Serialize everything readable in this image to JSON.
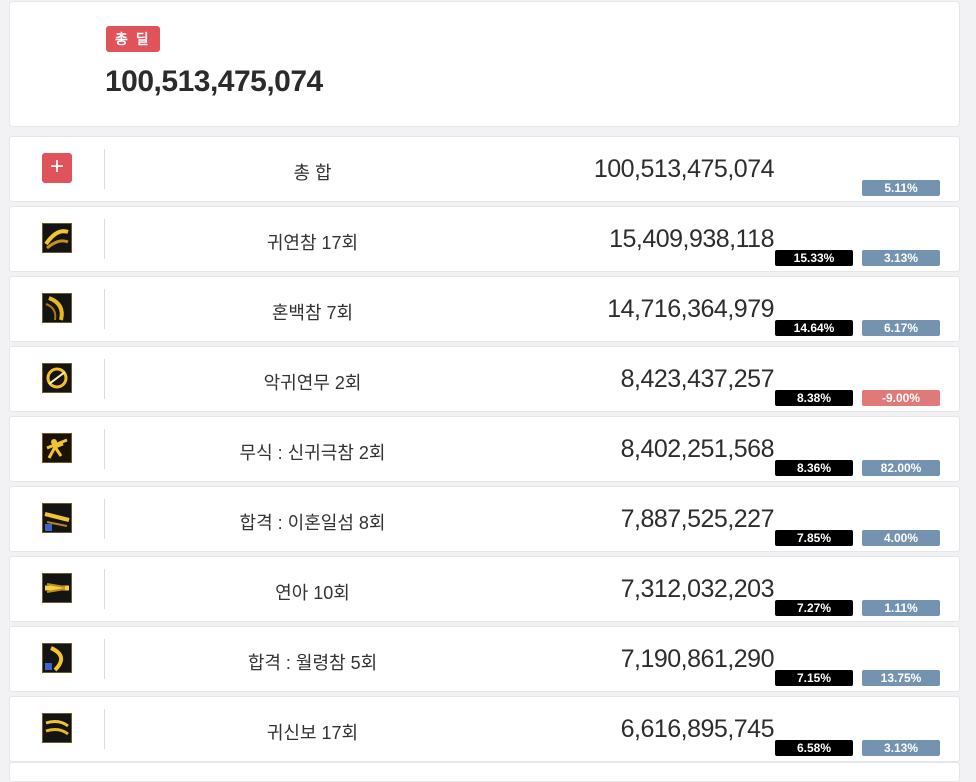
{
  "header": {
    "badge_label": "총 딜",
    "total_damage": "100,513,475,074"
  },
  "summary_row": {
    "icon": "plus-icon",
    "label": "총 합",
    "damage": "100,513,475,074",
    "delta": "5.11%"
  },
  "skills": [
    {
      "icon": "skill-slash-icon",
      "name": "귀연참 17회",
      "damage": "15,409,938,118",
      "share": "15.33%",
      "delta": "3.13%",
      "delta_negative": false
    },
    {
      "icon": "skill-crescent-icon",
      "name": "혼백참 7회",
      "damage": "14,716,364,979",
      "share": "14.64%",
      "delta": "6.17%",
      "delta_negative": false
    },
    {
      "icon": "skill-circle-icon",
      "name": "악귀연무 2회",
      "damage": "8,423,437,257",
      "share": "8.38%",
      "delta": "-9.00%",
      "delta_negative": true
    },
    {
      "icon": "skill-warrior-icon",
      "name": "무식 : 신귀극참 2회",
      "damage": "8,402,251,568",
      "share": "8.36%",
      "delta": "82.00%",
      "delta_negative": false
    },
    {
      "icon": "skill-sword-flash-icon",
      "name": "합격 : 이혼일섬 8회",
      "damage": "7,887,525,227",
      "share": "7.85%",
      "delta": "4.00%",
      "delta_negative": false
    },
    {
      "icon": "skill-beam-icon",
      "name": "연아 10회",
      "damage": "7,312,032,203",
      "share": "7.27%",
      "delta": "1.11%",
      "delta_negative": false
    },
    {
      "icon": "skill-moon-slash-icon",
      "name": "합격 : 월령참 5회",
      "damage": "7,190,861,290",
      "share": "7.15%",
      "delta": "13.75%",
      "delta_negative": false
    },
    {
      "icon": "skill-ghost-step-icon",
      "name": "귀신보 17회",
      "damage": "6,616,895,745",
      "share": "6.58%",
      "delta": "3.13%",
      "delta_negative": false
    }
  ],
  "colors": {
    "accent_red": "#e0535a",
    "delta_positive": "#7393b0",
    "delta_negative": "#e07a78",
    "share_bg": "#000000",
    "icon_gold": "#e8b81e"
  }
}
